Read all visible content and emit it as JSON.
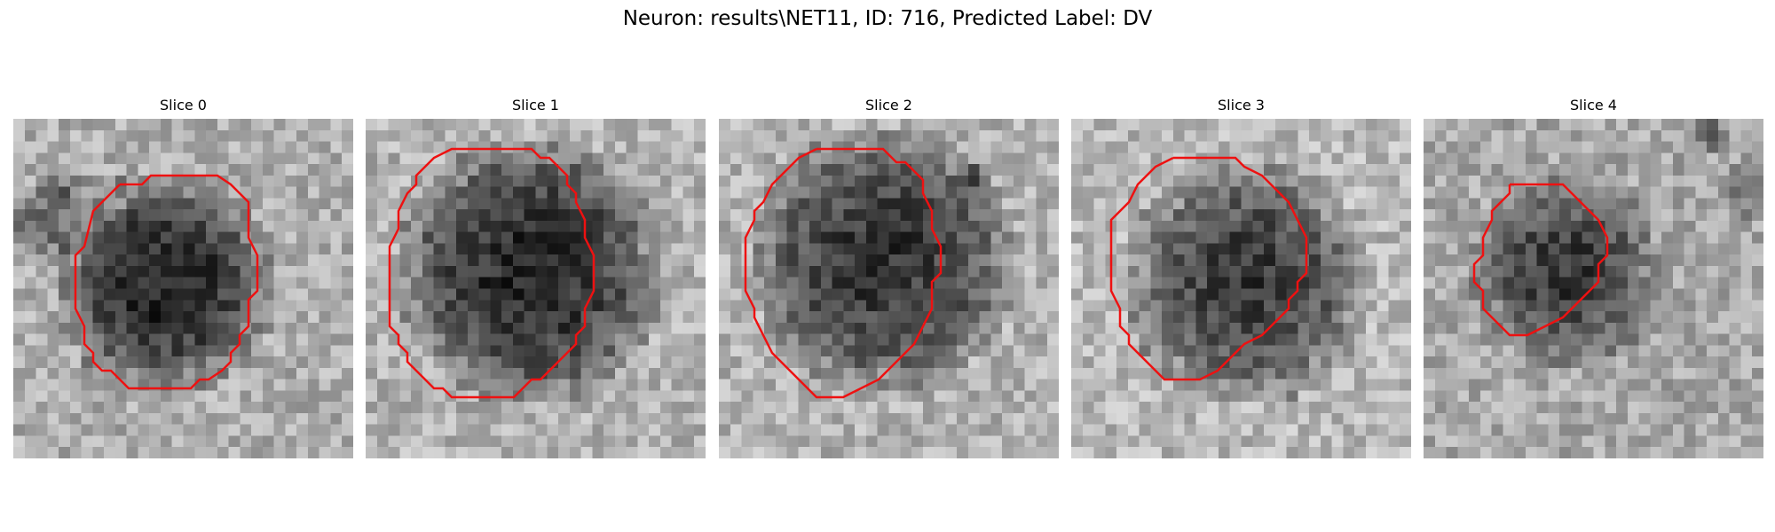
{
  "figure": {
    "title": "Neuron: results\\NET11, ID: 716, Predicted Label: DV",
    "contour_color": "#ee1111"
  },
  "panels": [
    {
      "title": "Slice 0"
    },
    {
      "title": "Slice 1"
    },
    {
      "title": "Slice 2"
    },
    {
      "title": "Slice 3"
    },
    {
      "title": "Slice 4"
    }
  ]
}
